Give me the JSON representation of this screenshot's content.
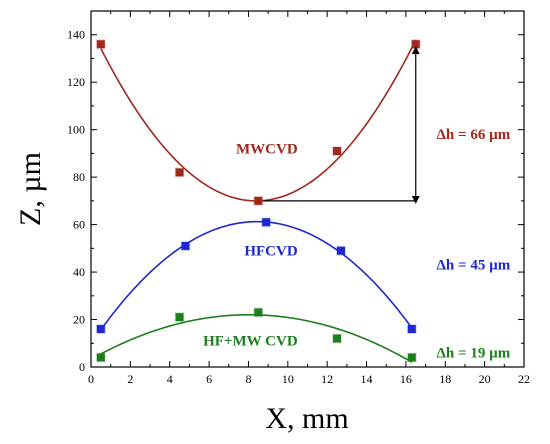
{
  "chart_data": {
    "type": "scatter",
    "xlabel": "X, mm",
    "ylabel": "Z, µm",
    "xlim": [
      0,
      22
    ],
    "ylim": [
      0,
      150
    ],
    "xticks": [
      "0",
      "2",
      "4",
      "6",
      "8",
      "10",
      "12",
      "14",
      "16",
      "18",
      "20",
      "22"
    ],
    "yticks": [
      "0",
      "20",
      "40",
      "60",
      "80",
      "100",
      "120",
      "140"
    ],
    "grid": false,
    "series": [
      {
        "name": "MWCVD",
        "color": "#a0281e",
        "x": [
          0.5,
          4.5,
          8.5,
          12.5,
          16.5
        ],
        "y": [
          136,
          82,
          70,
          91,
          136
        ],
        "delta_label": "Δh = 66 µm"
      },
      {
        "name": "HFCVD",
        "color": "#1e28d0",
        "x": [
          0.5,
          4.8,
          8.9,
          12.7,
          16.3
        ],
        "y": [
          16,
          51,
          61,
          49,
          16
        ],
        "delta_label": "Δh = 45 µm"
      },
      {
        "name": "HF+MW CVD",
        "color": "#1e7e1e",
        "x": [
          0.5,
          4.5,
          8.5,
          12.5,
          16.3
        ],
        "y": [
          4,
          21,
          23,
          12,
          4
        ],
        "delta_label": "Δh = 19 µm"
      }
    ]
  }
}
